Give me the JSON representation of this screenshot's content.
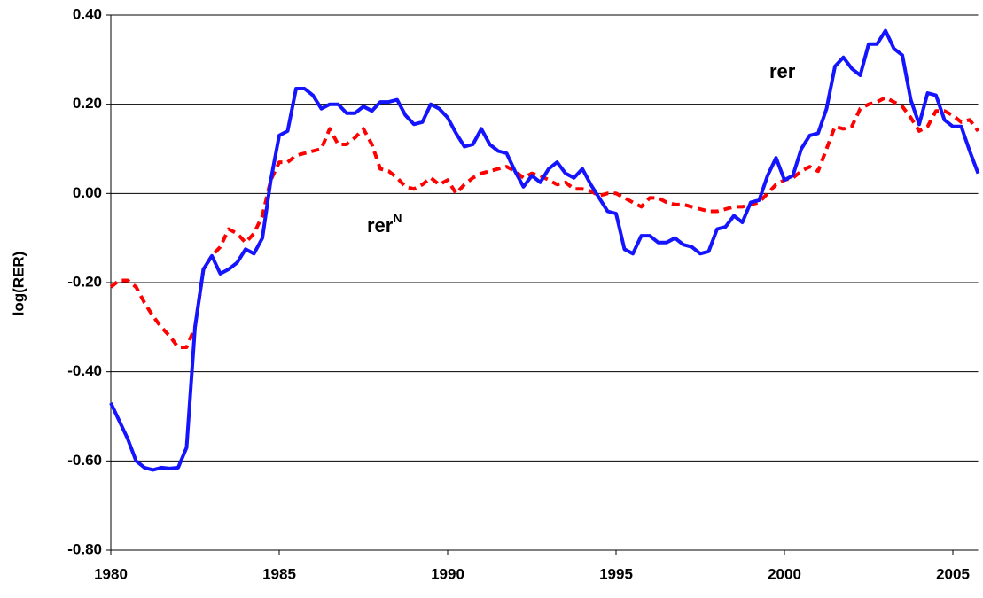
{
  "chart_data": {
    "type": "line",
    "y_label": "log(RER)",
    "annotations": [
      {
        "text": "rer"
      },
      {
        "text": "rer",
        "sup": "N"
      }
    ],
    "x": [
      1980,
      1980.25,
      1980.5,
      1980.75,
      1981,
      1981.25,
      1981.5,
      1981.75,
      1982,
      1982.25,
      1982.5,
      1982.75,
      1983,
      1983.25,
      1983.5,
      1983.75,
      1984,
      1984.25,
      1984.5,
      1984.75,
      1985,
      1985.25,
      1985.5,
      1985.75,
      1986,
      1986.25,
      1986.5,
      1986.75,
      1987,
      1987.25,
      1987.5,
      1987.75,
      1988,
      1988.25,
      1988.5,
      1988.75,
      1989,
      1989.25,
      1989.5,
      1989.75,
      1990,
      1990.25,
      1990.5,
      1990.75,
      1991,
      1991.25,
      1991.5,
      1991.75,
      1992,
      1992.25,
      1992.5,
      1992.75,
      1993,
      1993.25,
      1993.5,
      1993.75,
      1994,
      1994.25,
      1994.5,
      1994.75,
      1995,
      1995.25,
      1995.5,
      1995.75,
      1996,
      1996.25,
      1996.5,
      1996.75,
      1997,
      1997.25,
      1997.5,
      1997.75,
      1998,
      1998.25,
      1998.5,
      1998.75,
      1999,
      1999.25,
      1999.5,
      1999.75,
      2000,
      2000.25,
      2000.5,
      2000.75,
      2001,
      2001.25,
      2001.5,
      2001.75,
      2002,
      2002.25,
      2002.5,
      2002.75,
      2003,
      2003.25,
      2003.5,
      2003.75,
      2004,
      2004.25,
      2004.5,
      2004.75,
      2005,
      2005.25,
      2005.5,
      2005.75
    ],
    "series": [
      {
        "name": "rer",
        "color": "#1414ff",
        "dashed": false,
        "values": [
          -0.47,
          -0.51,
          -0.55,
          -0.6,
          -0.615,
          -0.62,
          -0.615,
          -0.617,
          -0.615,
          -0.57,
          -0.3,
          -0.17,
          -0.14,
          -0.18,
          -0.17,
          -0.155,
          -0.125,
          -0.135,
          -0.1,
          0.03,
          0.13,
          0.14,
          0.235,
          0.235,
          0.22,
          0.19,
          0.2,
          0.2,
          0.18,
          0.18,
          0.195,
          0.185,
          0.205,
          0.205,
          0.21,
          0.175,
          0.155,
          0.16,
          0.2,
          0.19,
          0.17,
          0.135,
          0.105,
          0.11,
          0.145,
          0.11,
          0.095,
          0.09,
          0.05,
          0.015,
          0.04,
          0.025,
          0.055,
          0.07,
          0.045,
          0.035,
          0.055,
          0.02,
          -0.01,
          -0.04,
          -0.045,
          -0.125,
          -0.135,
          -0.095,
          -0.095,
          -0.11,
          -0.11,
          -0.1,
          -0.115,
          -0.12,
          -0.135,
          -0.13,
          -0.08,
          -0.075,
          -0.05,
          -0.065,
          -0.02,
          -0.015,
          0.04,
          0.08,
          0.03,
          0.04,
          0.1,
          0.13,
          0.135,
          0.19,
          0.285,
          0.305,
          0.28,
          0.265,
          0.335,
          0.335,
          0.365,
          0.325,
          0.31,
          0.21,
          0.155,
          0.225,
          0.22,
          0.165,
          0.15,
          0.15,
          0.095,
          0.045
        ]
      },
      {
        "name": "rerN",
        "color": "#ff0000",
        "dashed": true,
        "values": [
          -0.21,
          -0.195,
          -0.195,
          -0.21,
          -0.245,
          -0.275,
          -0.3,
          -0.32,
          -0.345,
          -0.345,
          -0.3,
          -0.17,
          -0.14,
          -0.12,
          -0.08,
          -0.09,
          -0.11,
          -0.09,
          -0.05,
          0.03,
          0.07,
          0.07,
          0.085,
          0.09,
          0.095,
          0.1,
          0.145,
          0.11,
          0.11,
          0.125,
          0.145,
          0.11,
          0.055,
          0.05,
          0.035,
          0.015,
          0.01,
          0.02,
          0.035,
          0.02,
          0.03,
          0.0,
          0.02,
          0.035,
          0.045,
          0.05,
          0.055,
          0.06,
          0.05,
          0.035,
          0.045,
          0.04,
          0.03,
          0.02,
          0.025,
          0.01,
          0.01,
          0.005,
          -0.005,
          0.0,
          0.0,
          -0.01,
          -0.02,
          -0.03,
          -0.01,
          -0.01,
          -0.02,
          -0.025,
          -0.025,
          -0.03,
          -0.035,
          -0.04,
          -0.04,
          -0.035,
          -0.03,
          -0.03,
          -0.025,
          -0.02,
          0.0,
          0.02,
          0.03,
          0.035,
          0.05,
          0.06,
          0.05,
          0.1,
          0.15,
          0.145,
          0.15,
          0.19,
          0.2,
          0.205,
          0.215,
          0.205,
          0.195,
          0.17,
          0.14,
          0.15,
          0.185,
          0.185,
          0.175,
          0.16,
          0.165,
          0.14
        ]
      }
    ],
    "xlim": [
      1980,
      2005.75
    ],
    "xticks": [
      1980,
      1985,
      1990,
      1995,
      2000,
      2005
    ],
    "ylim": [
      -0.8,
      0.4
    ],
    "yticks": [
      {
        "value": 0.4,
        "label": "0.40"
      },
      {
        "value": 0.2,
        "label": "0.20"
      },
      {
        "value": 0,
        "label": "0.00"
      },
      {
        "value": -0.2,
        "label": "-0.20"
      },
      {
        "value": -0.4,
        "label": "-0.40"
      },
      {
        "value": -0.6,
        "label": "-0.60"
      },
      {
        "value": -0.8,
        "label": "-0.80"
      }
    ],
    "grid": true
  }
}
